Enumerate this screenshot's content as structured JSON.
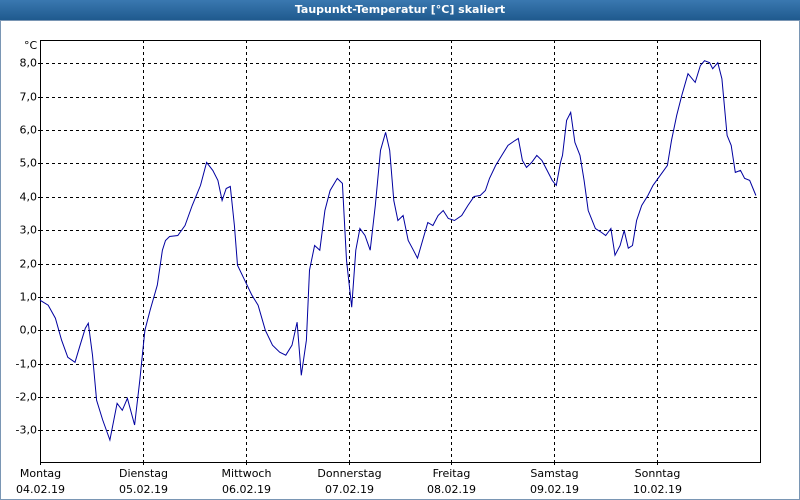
{
  "chart_data": {
    "type": "line",
    "title": "Taupunkt-Temperatur [°C] skaliert",
    "y_unit": "°C",
    "color": "#0000a0",
    "grid": true,
    "xlim": [
      0,
      7
    ],
    "ylim": [
      -3.95,
      8.7
    ],
    "xticks": [
      {
        "value": 0,
        "label": "Montag",
        "date": "04.02.19"
      },
      {
        "value": 1,
        "label": "Dienstag",
        "date": "05.02.19"
      },
      {
        "value": 2,
        "label": "Mittwoch",
        "date": "06.02.19"
      },
      {
        "value": 3,
        "label": "Donnerstag",
        "date": "07.02.19"
      },
      {
        "value": 4,
        "label": "Freitag",
        "date": "08.02.19"
      },
      {
        "value": 5,
        "label": "Samstag",
        "date": "09.02.19"
      },
      {
        "value": 6,
        "label": "Sonntag",
        "date": "10.02.19"
      }
    ],
    "yticks": [
      {
        "value": 8,
        "label": "8,0"
      },
      {
        "value": 7,
        "label": "7,0"
      },
      {
        "value": 6,
        "label": "6,0"
      },
      {
        "value": 5,
        "label": "5,0"
      },
      {
        "value": 4,
        "label": "4,0"
      },
      {
        "value": 3,
        "label": "3,0"
      },
      {
        "value": 2,
        "label": "2,0"
      },
      {
        "value": 1,
        "label": "1,0"
      },
      {
        "value": 0,
        "label": "0,0"
      },
      {
        "value": -1,
        "label": "-1,0"
      },
      {
        "value": -2,
        "label": "-2,0"
      },
      {
        "value": -3,
        "label": "-3,0"
      }
    ],
    "x": [
      0.0,
      0.08,
      0.15,
      0.21,
      0.27,
      0.34,
      0.39,
      0.44,
      0.47,
      0.51,
      0.55,
      0.61,
      0.68,
      0.75,
      0.8,
      0.85,
      0.92,
      0.97,
      1.02,
      1.07,
      1.14,
      1.19,
      1.22,
      1.26,
      1.34,
      1.41,
      1.48,
      1.56,
      1.62,
      1.68,
      1.73,
      1.77,
      1.81,
      1.85,
      1.89,
      1.92,
      1.99,
      2.06,
      2.12,
      2.19,
      2.26,
      2.33,
      2.39,
      2.45,
      2.5,
      2.54,
      2.59,
      2.62,
      2.67,
      2.72,
      2.77,
      2.82,
      2.89,
      2.94,
      2.98,
      3.03,
      3.07,
      3.11,
      3.16,
      3.21,
      3.26,
      3.31,
      3.36,
      3.4,
      3.44,
      3.48,
      3.53,
      3.58,
      3.63,
      3.67,
      3.72,
      3.77,
      3.82,
      3.87,
      3.92,
      3.97,
      4.03,
      4.1,
      4.16,
      4.22,
      4.28,
      4.33,
      4.37,
      4.43,
      4.49,
      4.55,
      4.62,
      4.65,
      4.69,
      4.73,
      4.78,
      4.83,
      4.88,
      4.93,
      4.98,
      5.02,
      5.06,
      5.08,
      5.12,
      5.16,
      5.2,
      5.25,
      5.29,
      5.33,
      5.4,
      5.46,
      5.5,
      5.55,
      5.59,
      5.64,
      5.68,
      5.72,
      5.76,
      5.8,
      5.85,
      5.91,
      5.96,
      6.03,
      6.1,
      6.14,
      6.19,
      6.24,
      6.3,
      6.37,
      6.42,
      6.46,
      6.51,
      6.54,
      6.59,
      6.63,
      6.68,
      6.72,
      6.76,
      6.81,
      6.85,
      6.9,
      6.96
    ],
    "values": [
      0.9,
      0.75,
      0.36,
      -0.3,
      -0.81,
      -0.96,
      -0.45,
      0.06,
      0.21,
      -0.75,
      -2.1,
      -2.69,
      -3.29,
      -2.19,
      -2.4,
      -2.04,
      -2.84,
      -1.5,
      0.0,
      0.6,
      1.35,
      2.4,
      2.69,
      2.81,
      2.84,
      3.14,
      3.74,
      4.34,
      5.03,
      4.79,
      4.49,
      3.89,
      4.25,
      4.31,
      3.14,
      1.95,
      1.5,
      1.05,
      0.75,
      0.0,
      -0.45,
      -0.66,
      -0.75,
      -0.45,
      0.24,
      -1.35,
      -0.3,
      1.8,
      2.54,
      2.4,
      3.59,
      4.19,
      4.55,
      4.4,
      2.1,
      0.69,
      2.4,
      3.05,
      2.84,
      2.4,
      3.74,
      5.39,
      5.93,
      5.39,
      3.89,
      3.29,
      3.44,
      2.69,
      2.4,
      2.16,
      2.69,
      3.23,
      3.14,
      3.44,
      3.59,
      3.35,
      3.29,
      3.44,
      3.74,
      4.01,
      4.04,
      4.19,
      4.55,
      4.94,
      5.24,
      5.54,
      5.69,
      5.75,
      5.09,
      4.88,
      5.03,
      5.24,
      5.09,
      4.79,
      4.49,
      4.34,
      5.03,
      5.24,
      6.29,
      6.53,
      5.63,
      5.24,
      4.49,
      3.59,
      3.05,
      2.93,
      2.84,
      3.05,
      2.25,
      2.54,
      2.99,
      2.46,
      2.54,
      3.29,
      3.74,
      4.04,
      4.34,
      4.64,
      4.94,
      5.69,
      6.44,
      7.04,
      7.69,
      7.43,
      7.93,
      8.08,
      8.02,
      7.84,
      8.02,
      7.54,
      5.84,
      5.54,
      4.73,
      4.79,
      4.55,
      4.49,
      4.04
    ]
  }
}
